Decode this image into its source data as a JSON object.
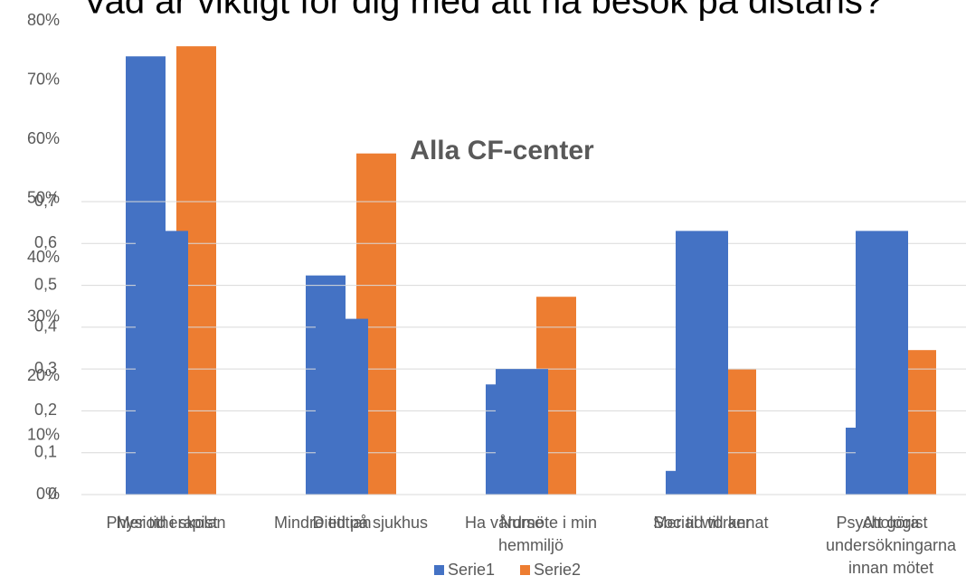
{
  "chart_data": [
    {
      "type": "bar",
      "title": "Vad är viktigt för dig med att ha besök på distans?",
      "categories": [
        "Mer tid i skolan",
        "Mindre tid på sjukhus",
        "Ha vårdmöte i min hemmiljö",
        "Mer tid till annat",
        "Att göra undersökningarna innan mötet"
      ],
      "series": [
        {
          "name": "Serie1",
          "color": "#4472c4",
          "values": [
            74,
            37,
            18.6,
            4,
            11.3
          ]
        },
        {
          "name": "Serie2",
          "color": "#ed7d31",
          "values": [
            75.7,
            57.6,
            33.4,
            21.2,
            24.4
          ]
        }
      ],
      "ylim": [
        0,
        80
      ],
      "yticks": [
        {
          "value": 0,
          "label": "0%"
        },
        {
          "value": 10,
          "label": "10%"
        },
        {
          "value": 20,
          "label": "20%"
        },
        {
          "value": 30,
          "label": "30%"
        },
        {
          "value": 40,
          "label": "40%"
        },
        {
          "value": 50,
          "label": "50%"
        },
        {
          "value": 60,
          "label": "60%"
        },
        {
          "value": 70,
          "label": "70%"
        },
        {
          "value": 80,
          "label": "80%"
        }
      ],
      "grid": false,
      "legend": "bottom"
    },
    {
      "type": "bar",
      "title": "Alla CF-center",
      "categories": [
        "Physiotherapist",
        "Dietitian",
        "Nurse",
        "Social worker",
        "Psychologist"
      ],
      "values": [
        0.63,
        0.42,
        0.3,
        0.63,
        0.63
      ],
      "color": "#4472c4",
      "ylim": [
        0,
        0.7
      ],
      "yticks": [
        0,
        {
          "value": 0.1,
          "label": "0,1"
        },
        {
          "value": 0.2,
          "label": "0,2"
        },
        {
          "value": 0.3,
          "label": "0,3"
        },
        {
          "value": 0.4,
          "label": "0,4"
        },
        {
          "value": 0.5,
          "label": "0,5"
        },
        {
          "value": 0.6,
          "label": "0,6"
        },
        {
          "value": 0.7,
          "label": "0,7"
        }
      ],
      "grid": true
    }
  ]
}
